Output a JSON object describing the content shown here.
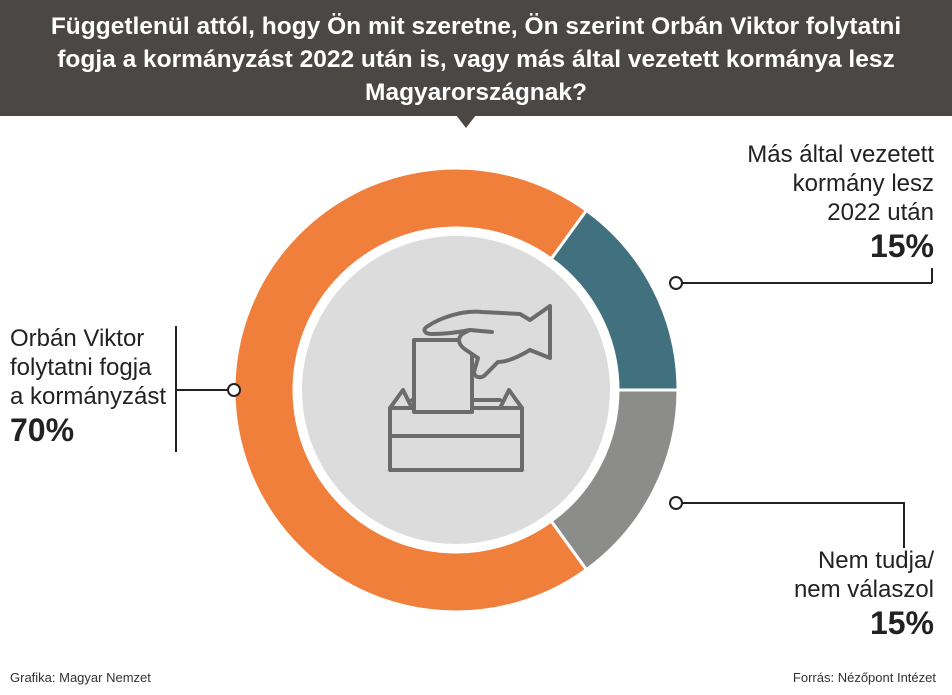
{
  "chart_data": {
    "type": "pie",
    "title": "Függetlenül attól, hogy Ön mit szeretne, Ön szerint Orbán Viktor folytatni fogja a kormányzást 2022 után is, vagy más által vezetett kormánya lesz Magyarországnak?",
    "donut": true,
    "slices": [
      {
        "label_lines": [
          "Orbán Viktor",
          "folytatni fogja",
          "a kormányzást"
        ],
        "value": 70,
        "value_label": "70%",
        "color": "#f07f3c"
      },
      {
        "label_lines": [
          "Más által vezetett",
          "kormány lesz",
          "2022 után"
        ],
        "value": 15,
        "value_label": "15%",
        "color": "#41707f"
      },
      {
        "label_lines": [
          "Nem tudja/",
          "nem válaszol"
        ],
        "value": 15,
        "value_label": "15%",
        "color": "#8c8c8b"
      }
    ],
    "center_icon": "ballot-box-icon",
    "center_color": "#dcdcdc",
    "icon_color": "#6b6b6b"
  },
  "footer": {
    "credit": "Grafika: Magyar Nemzet",
    "source": "Forrás: Nézőpont Intézet"
  }
}
